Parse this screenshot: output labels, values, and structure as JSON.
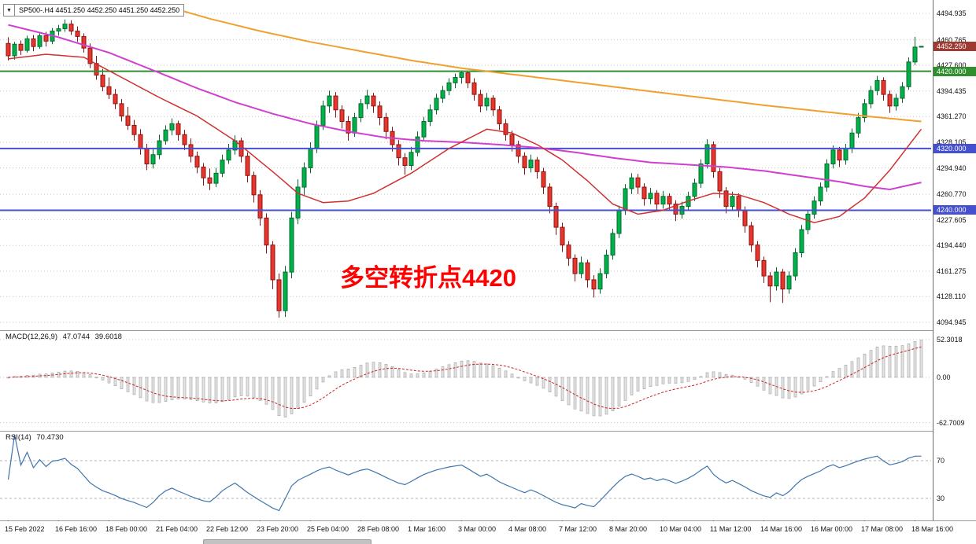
{
  "symbol_bar": {
    "dropdown_icon": "▼",
    "text": "SP500-.H4 4451.250 4452.250 4451.250 4452.250"
  },
  "annotation": {
    "text": "多空转折点4420",
    "color": "#ff0000"
  },
  "tags": [
    {
      "name": "current-price-tag",
      "label": "4452.250",
      "price": 4452.25,
      "bg": "#9e3a32"
    },
    {
      "name": "level-tag-4420",
      "label": "4420.000",
      "price": 4420,
      "bg": "#2f8f2f"
    },
    {
      "name": "level-tag-4320",
      "label": "4320.000",
      "price": 4320,
      "bg": "#4450cf"
    },
    {
      "name": "level-tag-4240",
      "label": "4240.000",
      "price": 4240,
      "bg": "#4450cf"
    }
  ],
  "indicators": {
    "macd": {
      "title": "MACD(12,26,9)",
      "value_main": "47.0744",
      "value_signal": "39.6018",
      "axis": [
        "52.3018",
        "0.00",
        "-62.7009"
      ],
      "params": [
        12,
        26,
        9
      ]
    },
    "rsi": {
      "title": "RSI(14)",
      "value": "70.4730",
      "axis": [
        "70",
        "30"
      ],
      "levels": [
        70,
        30
      ],
      "period": 14
    }
  },
  "chart_data": {
    "type": "candlestick",
    "symbol": "SP500-.H4",
    "timeframe": "H4",
    "title": "SP500-,H4",
    "y_range": [
      4094.945,
      4494.935
    ],
    "y_ticks": [
      "4494.935",
      "4460.765",
      "4427.600",
      "4394.435",
      "4361.270",
      "4328.105",
      "4294.940",
      "4260.770",
      "4227.605",
      "4194.440",
      "4161.275",
      "4128.110",
      "4094.945"
    ],
    "x_labels": [
      "15 Feb 2022",
      "16 Feb 16:00",
      "18 Feb 00:00",
      "21 Feb 04:00",
      "22 Feb 12:00",
      "23 Feb 20:00",
      "25 Feb 04:00",
      "28 Feb 08:00",
      "1 Mar 16:00",
      "3 Mar 00:00",
      "4 Mar 08:00",
      "7 Mar 12:00",
      "8 Mar 20:00",
      "10 Mar 04:00",
      "11 Mar 12:00",
      "14 Mar 16:00",
      "16 Mar 00:00",
      "17 Mar 08:00",
      "18 Mar 16:00"
    ],
    "hlines": [
      {
        "price": 4420,
        "color": "#2f8f2f",
        "width": 2
      },
      {
        "price": 4320,
        "color": "#4450cf",
        "width": 2
      },
      {
        "price": 4240,
        "color": "#4450cf",
        "width": 2
      }
    ],
    "moving_averages": [
      {
        "name": "ma-slow-orange",
        "color": "#f0a030",
        "width": 2,
        "points": [
          [
            26,
            4502
          ],
          [
            32,
            4488
          ],
          [
            40,
            4472
          ],
          [
            48,
            4458
          ],
          [
            56,
            4446
          ],
          [
            64,
            4434
          ],
          [
            72,
            4424
          ],
          [
            80,
            4416
          ],
          [
            88,
            4408
          ],
          [
            96,
            4400
          ],
          [
            104,
            4392
          ],
          [
            112,
            4384
          ],
          [
            120,
            4376
          ],
          [
            128,
            4369
          ],
          [
            136,
            4362
          ],
          [
            145,
            4355
          ]
        ]
      },
      {
        "name": "ma-mid-magenta",
        "color": "#d040d0",
        "width": 2,
        "points": [
          [
            0,
            4480
          ],
          [
            8,
            4464
          ],
          [
            16,
            4444
          ],
          [
            24,
            4418
          ],
          [
            30,
            4398
          ],
          [
            36,
            4380
          ],
          [
            42,
            4365
          ],
          [
            48,
            4352
          ],
          [
            54,
            4342
          ],
          [
            60,
            4334
          ],
          [
            66,
            4330
          ],
          [
            72,
            4328
          ],
          [
            78,
            4325
          ],
          [
            84,
            4321
          ],
          [
            90,
            4315
          ],
          [
            96,
            4308
          ],
          [
            102,
            4302
          ],
          [
            108,
            4299
          ],
          [
            114,
            4296
          ],
          [
            120,
            4291
          ],
          [
            126,
            4284
          ],
          [
            132,
            4277
          ],
          [
            136,
            4271
          ],
          [
            140,
            4267
          ],
          [
            145,
            4276
          ]
        ]
      },
      {
        "name": "ma-fast-red",
        "color": "#d03030",
        "width": 1.5,
        "points": [
          [
            0,
            4436
          ],
          [
            6,
            4442
          ],
          [
            12,
            4438
          ],
          [
            18,
            4412
          ],
          [
            24,
            4386
          ],
          [
            30,
            4362
          ],
          [
            36,
            4330
          ],
          [
            42,
            4290
          ],
          [
            46,
            4262
          ],
          [
            50,
            4250
          ],
          [
            54,
            4252
          ],
          [
            58,
            4262
          ],
          [
            64,
            4288
          ],
          [
            70,
            4320
          ],
          [
            76,
            4345
          ],
          [
            80,
            4340
          ],
          [
            84,
            4325
          ],
          [
            88,
            4305
          ],
          [
            92,
            4278
          ],
          [
            96,
            4248
          ],
          [
            100,
            4235
          ],
          [
            104,
            4240
          ],
          [
            108,
            4252
          ],
          [
            112,
            4262
          ],
          [
            116,
            4260
          ],
          [
            120,
            4250
          ],
          [
            124,
            4235
          ],
          [
            128,
            4224
          ],
          [
            132,
            4232
          ],
          [
            136,
            4256
          ],
          [
            140,
            4292
          ],
          [
            145,
            4345
          ]
        ]
      }
    ],
    "colors": {
      "up": "#00b14a",
      "up_border": "#046b2e",
      "down": "#e8352e",
      "down_border": "#8c1410",
      "macd_bar": "#e3e3e3",
      "macd_bar_border": "#9f9f9f",
      "macd_signal": "#cc2222",
      "rsi_line": "#3f74ad",
      "grid": "#c8c8c8"
    },
    "ohlc": [
      [
        4456,
        4464,
        4434,
        4440
      ],
      [
        4440,
        4458,
        4435,
        4455
      ],
      [
        4455,
        4460,
        4441,
        4447
      ],
      [
        4447,
        4466,
        4444,
        4462
      ],
      [
        4462,
        4467,
        4446,
        4452
      ],
      [
        4452,
        4470,
        4449,
        4466
      ],
      [
        4466,
        4471,
        4452,
        4459
      ],
      [
        4459,
        4476,
        4455,
        4472
      ],
      [
        4472,
        4480,
        4466,
        4475
      ],
      [
        4475,
        4487,
        4471,
        4481
      ],
      [
        4481,
        4486,
        4467,
        4472
      ],
      [
        4472,
        4478,
        4458,
        4465
      ],
      [
        4465,
        4469,
        4444,
        4450
      ],
      [
        4450,
        4456,
        4424,
        4430
      ],
      [
        4430,
        4440,
        4409,
        4415
      ],
      [
        4415,
        4423,
        4394,
        4400
      ],
      [
        4400,
        4412,
        4384,
        4390
      ],
      [
        4390,
        4397,
        4371,
        4378
      ],
      [
        4378,
        4384,
        4355,
        4362
      ],
      [
        4362,
        4374,
        4344,
        4350
      ],
      [
        4350,
        4357,
        4330,
        4338
      ],
      [
        4338,
        4345,
        4312,
        4320
      ],
      [
        4320,
        4326,
        4292,
        4300
      ],
      [
        4300,
        4320,
        4294,
        4312
      ],
      [
        4312,
        4338,
        4306,
        4330
      ],
      [
        4330,
        4350,
        4325,
        4344
      ],
      [
        4344,
        4359,
        4337,
        4352
      ],
      [
        4352,
        4356,
        4330,
        4338
      ],
      [
        4338,
        4344,
        4318,
        4325
      ],
      [
        4325,
        4333,
        4302,
        4310
      ],
      [
        4310,
        4316,
        4288,
        4296
      ],
      [
        4296,
        4301,
        4272,
        4282
      ],
      [
        4282,
        4294,
        4266,
        4275
      ],
      [
        4275,
        4295,
        4270,
        4288
      ],
      [
        4288,
        4312,
        4283,
        4305
      ],
      [
        4305,
        4326,
        4300,
        4318
      ],
      [
        4318,
        4337,
        4312,
        4330
      ],
      [
        4330,
        4334,
        4302,
        4310
      ],
      [
        4310,
        4315,
        4276,
        4285
      ],
      [
        4285,
        4290,
        4250,
        4260
      ],
      [
        4260,
        4266,
        4220,
        4230
      ],
      [
        4230,
        4236,
        4184,
        4195
      ],
      [
        4195,
        4200,
        4138,
        4150
      ],
      [
        4150,
        4158,
        4101,
        4110
      ],
      [
        4110,
        4168,
        4102,
        4160
      ],
      [
        4160,
        4238,
        4152,
        4230
      ],
      [
        4230,
        4280,
        4222,
        4270
      ],
      [
        4270,
        4302,
        4260,
        4295
      ],
      [
        4295,
        4328,
        4288,
        4320
      ],
      [
        4320,
        4356,
        4314,
        4350
      ],
      [
        4350,
        4382,
        4344,
        4375
      ],
      [
        4375,
        4395,
        4366,
        4388
      ],
      [
        4388,
        4393,
        4360,
        4370
      ],
      [
        4370,
        4376,
        4346,
        4355
      ],
      [
        4355,
        4362,
        4330,
        4340
      ],
      [
        4340,
        4366,
        4335,
        4360
      ],
      [
        4360,
        4384,
        4354,
        4378
      ],
      [
        4378,
        4396,
        4371,
        4388
      ],
      [
        4388,
        4392,
        4366,
        4375
      ],
      [
        4375,
        4381,
        4350,
        4360
      ],
      [
        4360,
        4366,
        4332,
        4342
      ],
      [
        4342,
        4348,
        4316,
        4325
      ],
      [
        4325,
        4331,
        4298,
        4308
      ],
      [
        4308,
        4314,
        4286,
        4298
      ],
      [
        4298,
        4322,
        4292,
        4315
      ],
      [
        4315,
        4342,
        4310,
        4335
      ],
      [
        4335,
        4361,
        4330,
        4355
      ],
      [
        4355,
        4377,
        4349,
        4370
      ],
      [
        4370,
        4391,
        4364,
        4385
      ],
      [
        4385,
        4401,
        4379,
        4395
      ],
      [
        4395,
        4411,
        4389,
        4405
      ],
      [
        4405,
        4417,
        4398,
        4412
      ],
      [
        4412,
        4421,
        4404,
        4418
      ],
      [
        4418,
        4420,
        4398,
        4405
      ],
      [
        4405,
        4411,
        4382,
        4390
      ],
      [
        4390,
        4396,
        4367,
        4375
      ],
      [
        4375,
        4392,
        4369,
        4385
      ],
      [
        4385,
        4389,
        4362,
        4370
      ],
      [
        4370,
        4375,
        4344,
        4352
      ],
      [
        4352,
        4358,
        4330,
        4338
      ],
      [
        4338,
        4343,
        4316,
        4325
      ],
      [
        4325,
        4330,
        4301,
        4310
      ],
      [
        4310,
        4315,
        4286,
        4295
      ],
      [
        4295,
        4312,
        4289,
        4305
      ],
      [
        4305,
        4309,
        4281,
        4290
      ],
      [
        4290,
        4295,
        4261,
        4270
      ],
      [
        4270,
        4275,
        4236,
        4245
      ],
      [
        4245,
        4250,
        4208,
        4218
      ],
      [
        4218,
        4224,
        4186,
        4195
      ],
      [
        4195,
        4200,
        4168,
        4178
      ],
      [
        4178,
        4183,
        4148,
        4158
      ],
      [
        4158,
        4180,
        4152,
        4172
      ],
      [
        4172,
        4176,
        4140,
        4150
      ],
      [
        4150,
        4156,
        4127,
        4138
      ],
      [
        4138,
        4165,
        4132,
        4158
      ],
      [
        4158,
        4189,
        4152,
        4182
      ],
      [
        4182,
        4216,
        4176,
        4210
      ],
      [
        4210,
        4246,
        4204,
        4240
      ],
      [
        4240,
        4274,
        4234,
        4268
      ],
      [
        4268,
        4288,
        4261,
        4282
      ],
      [
        4282,
        4287,
        4261,
        4270
      ],
      [
        4270,
        4275,
        4246,
        4255
      ],
      [
        4255,
        4269,
        4248,
        4262
      ],
      [
        4262,
        4266,
        4240,
        4248
      ],
      [
        4248,
        4265,
        4242,
        4258
      ],
      [
        4258,
        4262,
        4239,
        4248
      ],
      [
        4248,
        4253,
        4226,
        4235
      ],
      [
        4235,
        4251,
        4229,
        4245
      ],
      [
        4245,
        4264,
        4239,
        4258
      ],
      [
        4258,
        4281,
        4252,
        4275
      ],
      [
        4275,
        4306,
        4269,
        4300
      ],
      [
        4300,
        4332,
        4294,
        4325
      ],
      [
        4325,
        4329,
        4282,
        4290
      ],
      [
        4290,
        4295,
        4256,
        4265
      ],
      [
        4265,
        4270,
        4236,
        4245
      ],
      [
        4245,
        4264,
        4239,
        4258
      ],
      [
        4258,
        4262,
        4231,
        4240
      ],
      [
        4240,
        4245,
        4211,
        4220
      ],
      [
        4220,
        4225,
        4186,
        4195
      ],
      [
        4195,
        4200,
        4166,
        4175
      ],
      [
        4175,
        4180,
        4146,
        4155
      ],
      [
        4155,
        4160,
        4121,
        4142
      ],
      [
        4142,
        4166,
        4136,
        4160
      ],
      [
        4160,
        4164,
        4120,
        4138
      ],
      [
        4138,
        4161,
        4132,
        4155
      ],
      [
        4155,
        4191,
        4149,
        4185
      ],
      [
        4185,
        4221,
        4179,
        4215
      ],
      [
        4215,
        4241,
        4209,
        4235
      ],
      [
        4235,
        4258,
        4229,
        4252
      ],
      [
        4252,
        4276,
        4246,
        4270
      ],
      [
        4270,
        4306,
        4264,
        4300
      ],
      [
        4300,
        4324,
        4294,
        4318
      ],
      [
        4318,
        4322,
        4296,
        4305
      ],
      [
        4305,
        4326,
        4299,
        4320
      ],
      [
        4320,
        4346,
        4314,
        4340
      ],
      [
        4340,
        4366,
        4334,
        4360
      ],
      [
        4360,
        4384,
        4354,
        4378
      ],
      [
        4378,
        4401,
        4372,
        4395
      ],
      [
        4395,
        4414,
        4389,
        4408
      ],
      [
        4408,
        4412,
        4382,
        4390
      ],
      [
        4390,
        4395,
        4366,
        4375
      ],
      [
        4375,
        4391,
        4369,
        4385
      ],
      [
        4385,
        4406,
        4379,
        4400
      ],
      [
        4400,
        4438,
        4396,
        4432
      ],
      [
        4432,
        4464.5,
        4428,
        4451.25
      ],
      [
        4451.25,
        4452.25,
        4451.25,
        4452.25
      ]
    ]
  }
}
